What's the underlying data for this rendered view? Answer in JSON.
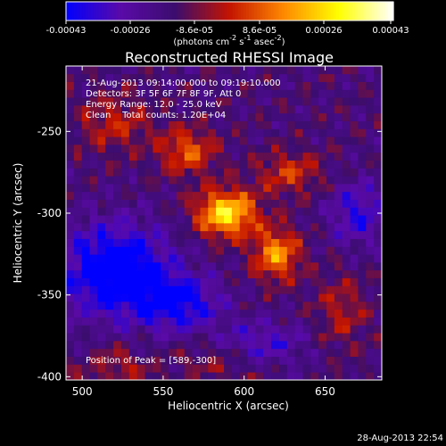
{
  "chart_data": {
    "type": "heatmap",
    "title": "Reconstructed RHESSI Image",
    "xlabel": "Heliocentric X (arcsec)",
    "ylabel": "Heliocentric Y (arcsec)",
    "xlim": [
      490,
      685
    ],
    "ylim": [
      -402,
      -210
    ],
    "x_ticks": [
      500,
      550,
      600,
      650
    ],
    "y_ticks": [
      -250,
      -300,
      -350,
      -400
    ],
    "x_tick_labels": [
      "500",
      "550",
      "600",
      "650"
    ],
    "y_tick_labels": [
      "-250",
      "-300",
      "-350",
      "-400"
    ],
    "colorbar": {
      "min": -0.00043,
      "max": 0.00043,
      "ticks": [
        -0.00043,
        -0.00026,
        -8.6e-05,
        8.6e-05,
        0.00026,
        0.00043
      ],
      "tick_labels": [
        "-0.00043",
        "-0.00026",
        "-8.6e-05",
        "8.6e-05",
        "0.00026",
        "0.00043"
      ],
      "unit_label": "(photons cm^-2 s^-1 asec^-2)",
      "colors": [
        "#0000ff",
        "#5a0aa8",
        "#3b0d6e",
        "#c41400",
        "#ff8a00",
        "#ffff00",
        "#ffffff"
      ]
    },
    "annotations": [
      "21-Aug-2013 09:14:00.000 to 09:19:10.000",
      "Detectors: 3F 5F 6F 7F 8F 9F, Att 0",
      "Energy Range: 12.0 - 25.0 keV",
      "Clean    Total counts: 1.20E+04"
    ],
    "peak": {
      "label": "Position of Peak = [589,-300]",
      "x": 589,
      "y": -300
    },
    "sources": [
      {
        "x": 589,
        "y": -300,
        "amp": 0.00043,
        "sx": 13,
        "sy": 10
      },
      {
        "x": 620,
        "y": -325,
        "amp": 0.00031,
        "sx": 10,
        "sy": 11
      },
      {
        "x": 565,
        "y": -262,
        "amp": 0.00023,
        "sx": 12,
        "sy": 10
      },
      {
        "x": 628,
        "y": -275,
        "amp": 0.00018,
        "sx": 14,
        "sy": 9
      },
      {
        "x": 520,
        "y": -245,
        "amp": 0.00015,
        "sx": 16,
        "sy": 12
      },
      {
        "x": 660,
        "y": -360,
        "amp": 0.00013,
        "sx": 11,
        "sy": 16
      },
      {
        "x": 520,
        "y": -395,
        "amp": 0.00012,
        "sx": 14,
        "sy": 10
      },
      {
        "x": 585,
        "y": -390,
        "amp": 0.0001,
        "sx": 20,
        "sy": 10
      }
    ],
    "negative_regions": [
      {
        "x": 520,
        "y": -335,
        "amp": -0.00035,
        "sx": 24,
        "sy": 20
      },
      {
        "x": 560,
        "y": -355,
        "amp": -0.00025,
        "sx": 18,
        "sy": 12
      },
      {
        "x": 670,
        "y": -300,
        "amp": -0.0002,
        "sx": 12,
        "sy": 14
      },
      {
        "x": 610,
        "y": -380,
        "amp": -0.00018,
        "sx": 20,
        "sy": 10
      }
    ],
    "grid": false,
    "legend": "none"
  },
  "footer": {
    "timestamp": "28-Aug-2013 22:54"
  }
}
